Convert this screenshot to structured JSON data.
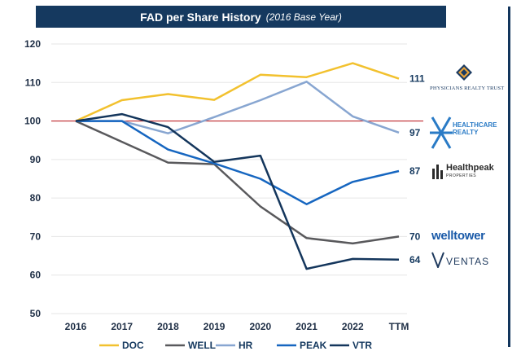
{
  "title": {
    "main": "FAD per Share History",
    "sub": "(2016 Base Year)"
  },
  "chart_data": {
    "type": "line",
    "title": "FAD per Share History (2016 Base Year)",
    "categories": [
      "2016",
      "2017",
      "2018",
      "2019",
      "2020",
      "2021",
      "2022",
      "TTM"
    ],
    "ylim": [
      50,
      120
    ],
    "yticks": [
      50,
      60,
      70,
      80,
      90,
      100,
      110,
      120
    ],
    "reference_line": 100,
    "series": [
      {
        "name": "DOC",
        "color": "#f2c12e",
        "values": [
          100,
          105.4,
          107,
          105.5,
          112,
          111.4,
          115,
          111
        ],
        "end_label": "111"
      },
      {
        "name": "WELL",
        "color": "#59595c",
        "values": [
          100,
          94.6,
          89.2,
          88.8,
          77.8,
          69.6,
          68.2,
          70
        ],
        "end_label": "70"
      },
      {
        "name": "HR",
        "color": "#88a6d1",
        "values": [
          100,
          100,
          96.8,
          101,
          105.4,
          110.2,
          101.2,
          97
        ],
        "end_label": "97"
      },
      {
        "name": "PEAK",
        "color": "#1666c0",
        "values": [
          100,
          100,
          92.6,
          89,
          85,
          78.4,
          84.2,
          87
        ],
        "end_label": "87"
      },
      {
        "name": "VTR",
        "color": "#14365c",
        "values": [
          100,
          101.8,
          98.4,
          89.4,
          91,
          61.6,
          64.2,
          64
        ],
        "end_label": "64"
      }
    ]
  },
  "logos": {
    "physicians": "PHYSICIANS REALTY TRUST",
    "healthcare_realty": [
      "HEALTHCARE",
      "REALTY"
    ],
    "healthpeak": {
      "name": "Healthpeak",
      "sub": "PROPERTIES"
    },
    "welltower": "welltower",
    "ventas": "VENTAS"
  }
}
